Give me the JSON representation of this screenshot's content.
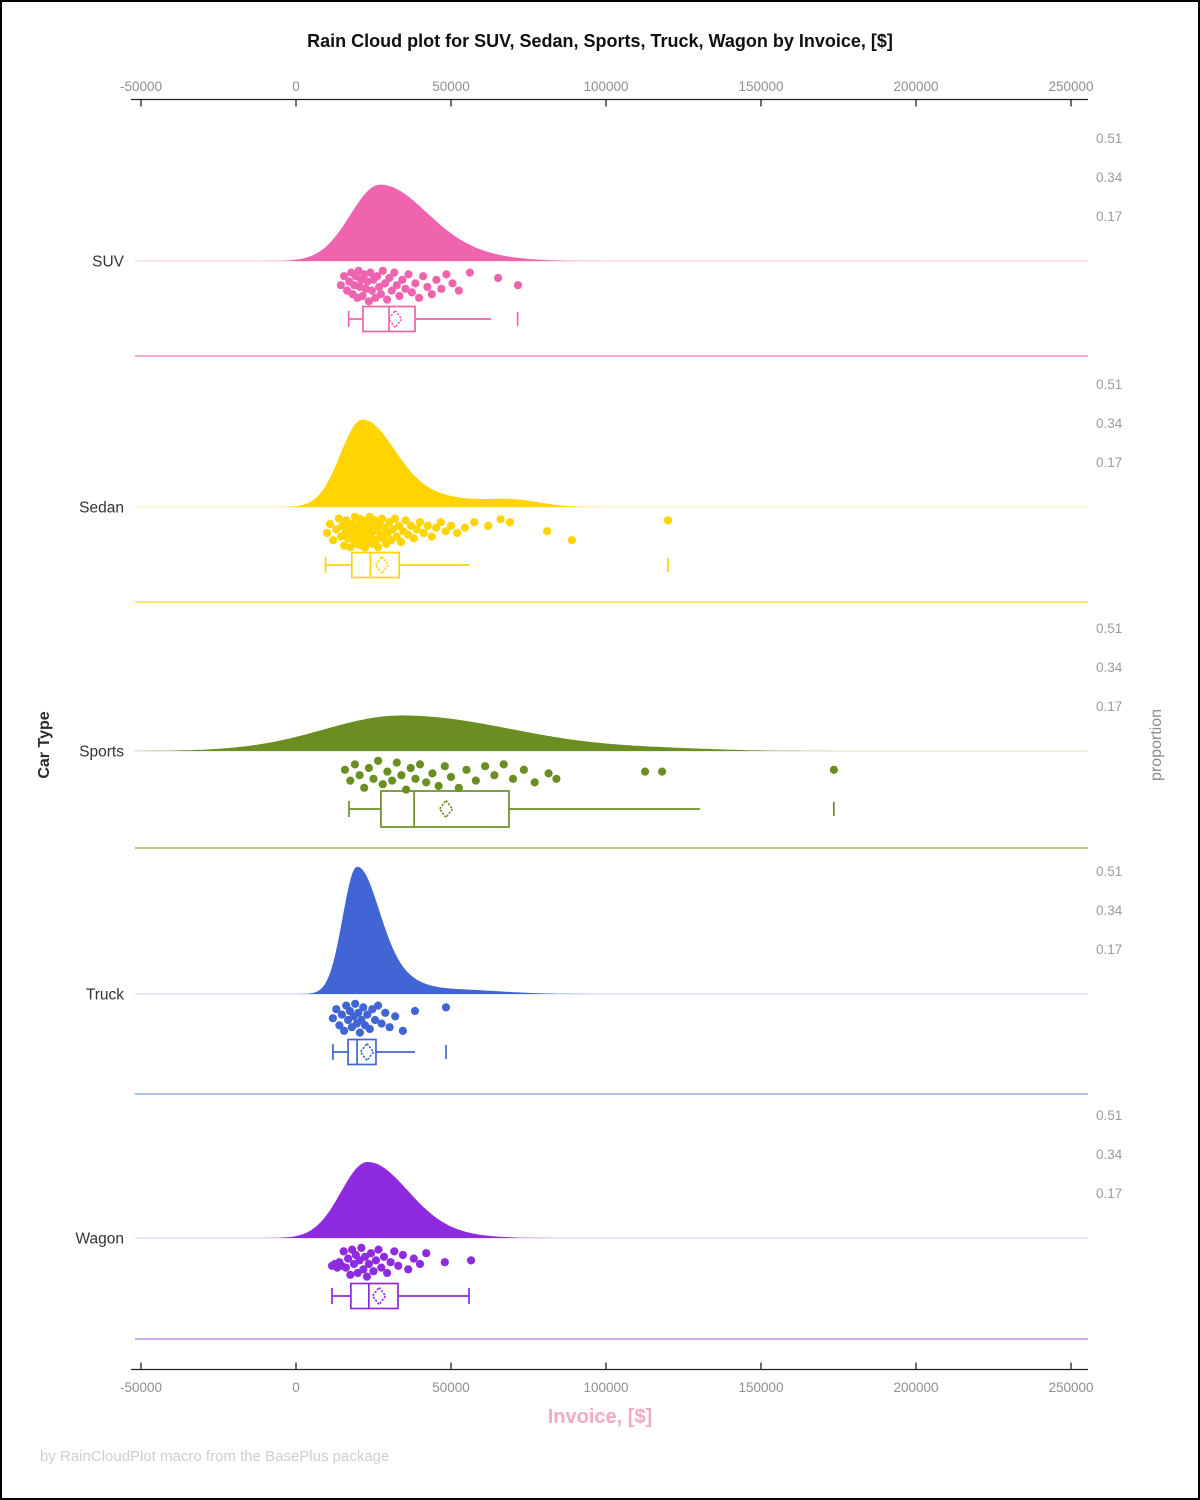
{
  "title": "Rain Cloud plot for SUV, Sedan, Sports, Truck, Wagon by Invoice, [$]",
  "x_axis": {
    "label": "Invoice, [$]",
    "label_color": "#f5a9c0",
    "ticks": [
      -50000,
      0,
      50000,
      100000,
      150000,
      200000,
      250000
    ],
    "tick_labels": [
      "-50000",
      "0",
      "50000",
      "100000",
      "150000",
      "200000",
      "250000"
    ]
  },
  "y_axis": {
    "label": "Car Type"
  },
  "right_axis": {
    "label": "proportion",
    "ticks": [
      0.51,
      0.34,
      0.17
    ],
    "tick_labels": [
      "0.51",
      "0.34",
      "0.17"
    ]
  },
  "footer": "by RainCloudPlot macro from the BasePlus package",
  "chart_data": {
    "type": "raincloud",
    "xlabel": "Invoice, [$]",
    "ylabel": "Car Type",
    "x_range": [
      -52000,
      255000
    ],
    "categories": [
      "SUV",
      "Sedan",
      "Sports",
      "Truck",
      "Wagon"
    ],
    "series": [
      {
        "name": "SUV",
        "color": "#f063af",
        "baseline_color": "#f9c9e1",
        "separator_color": "#f48fc5",
        "density": {
          "peak": 27000,
          "sd_left": 9500,
          "sd_right": 15000,
          "height": 0.33,
          "bumps": [
            {
              "center": 55000,
              "sd": 14000,
              "height": 0.02
            }
          ]
        },
        "box": {
          "whisker_low": 17000,
          "q1": 21600,
          "median": 30000,
          "q3": 38400,
          "whisker_high": 63000,
          "mean": 32000,
          "outliers": [
            71500
          ],
          "cap_high": false
        },
        "points_invoice_jitter": [
          [
            14500,
            0.45
          ],
          [
            15500,
            0.2
          ],
          [
            16500,
            0.6
          ],
          [
            17200,
            0.35
          ],
          [
            17800,
            0.1
          ],
          [
            18300,
            0.7
          ],
          [
            18800,
            0.45
          ],
          [
            19300,
            0.2
          ],
          [
            19800,
            0.8
          ],
          [
            20200,
            0.05
          ],
          [
            20600,
            0.5
          ],
          [
            21000,
            0.3
          ],
          [
            21500,
            0.75
          ],
          [
            22000,
            0.15
          ],
          [
            22500,
            0.55
          ],
          [
            23000,
            0.35
          ],
          [
            23500,
            0.9
          ],
          [
            24000,
            0.1
          ],
          [
            24500,
            0.6
          ],
          [
            25000,
            0.3
          ],
          [
            25600,
            0.8
          ],
          [
            26200,
            0.2
          ],
          [
            26800,
            0.5
          ],
          [
            27400,
            0.7
          ],
          [
            28000,
            0.05
          ],
          [
            28700,
            0.4
          ],
          [
            29400,
            0.85
          ],
          [
            30100,
            0.25
          ],
          [
            30900,
            0.6
          ],
          [
            31700,
            0.1
          ],
          [
            32500,
            0.45
          ],
          [
            33400,
            0.75
          ],
          [
            34300,
            0.3
          ],
          [
            35300,
            0.55
          ],
          [
            36300,
            0.15
          ],
          [
            37400,
            0.65
          ],
          [
            38500,
            0.4
          ],
          [
            39700,
            0.8
          ],
          [
            41000,
            0.2
          ],
          [
            42400,
            0.5
          ],
          [
            43800,
            0.7
          ],
          [
            45300,
            0.3
          ],
          [
            46900,
            0.55
          ],
          [
            48500,
            0.15
          ],
          [
            50500,
            0.4
          ],
          [
            52500,
            0.6
          ],
          [
            56100,
            0.1
          ],
          [
            65200,
            0.25
          ],
          [
            71600,
            0.45
          ]
        ]
      },
      {
        "name": "Sedan",
        "color": "#ffd400",
        "baseline_color": "#fbeeb3",
        "separator_color": "#ffde4d",
        "density": {
          "peak": 21300,
          "sd_left": 7000,
          "sd_right": 10500,
          "height": 0.375,
          "bumps": [
            {
              "center": 45000,
              "sd": 12000,
              "height": 0.04
            },
            {
              "center": 70000,
              "sd": 9000,
              "height": 0.03
            }
          ]
        },
        "box": {
          "whisker_low": 9500,
          "q1": 18000,
          "median": 24000,
          "q3": 33300,
          "whisker_high": 56000,
          "mean": 27700,
          "outliers": [
            120000
          ],
          "cap_high": false
        },
        "points_invoice_jitter": [
          [
            10000,
            0.5
          ],
          [
            11000,
            0.25
          ],
          [
            12000,
            0.7
          ],
          [
            13000,
            0.4
          ],
          [
            13800,
            0.1
          ],
          [
            14500,
            0.6
          ],
          [
            15000,
            0.3
          ],
          [
            15500,
            0.85
          ],
          [
            15900,
            0.5
          ],
          [
            16300,
            0.15
          ],
          [
            16700,
            0.65
          ],
          [
            17100,
            0.35
          ],
          [
            17500,
            0.9
          ],
          [
            17900,
            0.55
          ],
          [
            18300,
            0.25
          ],
          [
            18700,
            0.7
          ],
          [
            19000,
            0.05
          ],
          [
            19300,
            0.45
          ],
          [
            19600,
            0.8
          ],
          [
            19900,
            0.3
          ],
          [
            20200,
            0.6
          ],
          [
            20500,
            0.1
          ],
          [
            20800,
            0.5
          ],
          [
            21100,
            0.85
          ],
          [
            21400,
            0.25
          ],
          [
            21700,
            0.65
          ],
          [
            22000,
            0.4
          ],
          [
            22300,
            0.9
          ],
          [
            22600,
            0.15
          ],
          [
            22900,
            0.55
          ],
          [
            23200,
            0.75
          ],
          [
            23500,
            0.35
          ],
          [
            23800,
            0.05
          ],
          [
            24100,
            0.6
          ],
          [
            24400,
            0.3
          ],
          [
            24700,
            0.8
          ],
          [
            25000,
            0.45
          ],
          [
            25300,
            0.15
          ],
          [
            25700,
            0.7
          ],
          [
            26100,
            0.4
          ],
          [
            26500,
            0.9
          ],
          [
            26900,
            0.25
          ],
          [
            27300,
            0.55
          ],
          [
            27700,
            0.1
          ],
          [
            28100,
            0.65
          ],
          [
            28600,
            0.35
          ],
          [
            29100,
            0.8
          ],
          [
            29600,
            0.5
          ],
          [
            30100,
            0.2
          ],
          [
            30700,
            0.7
          ],
          [
            31300,
            0.4
          ],
          [
            31900,
            0.1
          ],
          [
            32500,
            0.6
          ],
          [
            33200,
            0.3
          ],
          [
            33900,
            0.75
          ],
          [
            34600,
            0.45
          ],
          [
            35400,
            0.15
          ],
          [
            36200,
            0.55
          ],
          [
            37100,
            0.3
          ],
          [
            38000,
            0.65
          ],
          [
            39000,
            0.4
          ],
          [
            40000,
            0.2
          ],
          [
            41200,
            0.5
          ],
          [
            42500,
            0.3
          ],
          [
            43800,
            0.6
          ],
          [
            45200,
            0.35
          ],
          [
            46700,
            0.2
          ],
          [
            48300,
            0.45
          ],
          [
            50000,
            0.3
          ],
          [
            52000,
            0.5
          ],
          [
            54500,
            0.35
          ],
          [
            57500,
            0.2
          ],
          [
            62000,
            0.3
          ],
          [
            66000,
            0.12
          ],
          [
            69000,
            0.2
          ],
          [
            81000,
            0.45
          ],
          [
            89000,
            0.7
          ],
          [
            120000,
            0.15
          ]
        ]
      },
      {
        "name": "Sports",
        "color": "#6b8e23",
        "baseline_color": "#d9dfc3",
        "separator_color": "#a8ba72",
        "density": {
          "peak": 34000,
          "sd_left": 25000,
          "sd_right": 36000,
          "height": 0.155,
          "bumps": [
            {
              "center": 120000,
              "sd": 18000,
              "height": 0.007
            }
          ]
        },
        "box": {
          "whisker_low": 17100,
          "q1": 27400,
          "median": 38100,
          "q3": 68700,
          "whisker_high": 130300,
          "mean": 48400,
          "outliers": [
            173500
          ],
          "cap_high": false
        },
        "points_invoice_jitter": [
          [
            15800,
            0.3
          ],
          [
            17500,
            0.6
          ],
          [
            19000,
            0.15
          ],
          [
            20500,
            0.45
          ],
          [
            22000,
            0.8
          ],
          [
            23500,
            0.25
          ],
          [
            25000,
            0.55
          ],
          [
            26500,
            0.05
          ],
          [
            28000,
            0.7
          ],
          [
            29500,
            0.35
          ],
          [
            31000,
            0.6
          ],
          [
            32500,
            0.1
          ],
          [
            34000,
            0.45
          ],
          [
            35500,
            0.85
          ],
          [
            37000,
            0.25
          ],
          [
            38500,
            0.55
          ],
          [
            40000,
            0.15
          ],
          [
            42000,
            0.65
          ],
          [
            44000,
            0.4
          ],
          [
            46000,
            0.75
          ],
          [
            48000,
            0.2
          ],
          [
            50000,
            0.5
          ],
          [
            52500,
            0.8
          ],
          [
            55000,
            0.3
          ],
          [
            58000,
            0.6
          ],
          [
            61000,
            0.2
          ],
          [
            64000,
            0.45
          ],
          [
            67000,
            0.15
          ],
          [
            70000,
            0.55
          ],
          [
            73500,
            0.3
          ],
          [
            77000,
            0.65
          ],
          [
            81500,
            0.4
          ],
          [
            84000,
            0.55
          ],
          [
            112600,
            0.35
          ],
          [
            118100,
            0.35
          ],
          [
            173500,
            0.3
          ]
        ]
      },
      {
        "name": "Truck",
        "color": "#4165d4",
        "baseline_color": "#c8d4f0",
        "separator_color": "#8fa9e6",
        "density": {
          "peak": 19500,
          "sd_left": 4500,
          "sd_right": 7000,
          "height": 0.53,
          "bumps": [
            {
              "center": 31000,
              "sd": 8000,
              "height": 0.06
            },
            {
              "center": 50000,
              "sd": 15000,
              "height": 0.02
            }
          ]
        },
        "box": {
          "whisker_low": 11900,
          "q1": 16800,
          "median": 19700,
          "q3": 25800,
          "whisker_high": 38400,
          "mean": 22900,
          "outliers": [
            48400
          ],
          "cap_high": false
        },
        "points_invoice_jitter": [
          [
            11900,
            0.45
          ],
          [
            13000,
            0.2
          ],
          [
            14000,
            0.65
          ],
          [
            14800,
            0.35
          ],
          [
            15500,
            0.8
          ],
          [
            16200,
            0.1
          ],
          [
            16800,
            0.5
          ],
          [
            17400,
            0.25
          ],
          [
            18000,
            0.7
          ],
          [
            18600,
            0.4
          ],
          [
            19100,
            0.05
          ],
          [
            19600,
            0.6
          ],
          [
            20100,
            0.3
          ],
          [
            20600,
            0.85
          ],
          [
            21100,
            0.5
          ],
          [
            21700,
            0.15
          ],
          [
            22300,
            0.65
          ],
          [
            23000,
            0.35
          ],
          [
            23800,
            0.75
          ],
          [
            24600,
            0.2
          ],
          [
            25500,
            0.5
          ],
          [
            26500,
            0.1
          ],
          [
            27600,
            0.6
          ],
          [
            28800,
            0.3
          ],
          [
            30200,
            0.7
          ],
          [
            32000,
            0.4
          ],
          [
            34500,
            0.8
          ],
          [
            38400,
            0.25
          ],
          [
            48400,
            0.15
          ]
        ]
      },
      {
        "name": "Wagon",
        "color": "#8e2adf",
        "baseline_color": "#dfc9f2",
        "separator_color": "#bb8fe5",
        "density": {
          "peak": 23000,
          "sd_left": 8500,
          "sd_right": 13000,
          "height": 0.33,
          "bumps": [
            {
              "center": 48000,
              "sd": 12000,
              "height": 0.012
            }
          ]
        },
        "box": {
          "whisker_low": 11600,
          "q1": 17700,
          "median": 23500,
          "q3": 32900,
          "whisker_high": 55800,
          "mean": 26800,
          "outliers": [],
          "cap_high": true
        },
        "points_invoice_jitter": [
          [
            11600,
            0.55
          ],
          [
            12500,
            0.5
          ],
          [
            13300,
            0.6
          ],
          [
            14000,
            0.45
          ],
          [
            14700,
            0.55
          ],
          [
            15400,
            0.15
          ],
          [
            16100,
            0.6
          ],
          [
            16800,
            0.35
          ],
          [
            17500,
            0.8
          ],
          [
            18100,
            0.1
          ],
          [
            18700,
            0.5
          ],
          [
            19300,
            0.25
          ],
          [
            19900,
            0.75
          ],
          [
            20500,
            0.4
          ],
          [
            21100,
            0.05
          ],
          [
            21700,
            0.65
          ],
          [
            22300,
            0.3
          ],
          [
            22900,
            0.85
          ],
          [
            23500,
            0.5
          ],
          [
            24200,
            0.2
          ],
          [
            25000,
            0.7
          ],
          [
            25800,
            0.4
          ],
          [
            26600,
            0.1
          ],
          [
            27500,
            0.6
          ],
          [
            28400,
            0.3
          ],
          [
            29400,
            0.75
          ],
          [
            30500,
            0.45
          ],
          [
            31700,
            0.15
          ],
          [
            33000,
            0.55
          ],
          [
            34500,
            0.25
          ],
          [
            36200,
            0.65
          ],
          [
            38000,
            0.35
          ],
          [
            40000,
            0.5
          ],
          [
            42000,
            0.2
          ],
          [
            48000,
            0.45
          ],
          [
            56500,
            0.4
          ]
        ]
      }
    ]
  }
}
